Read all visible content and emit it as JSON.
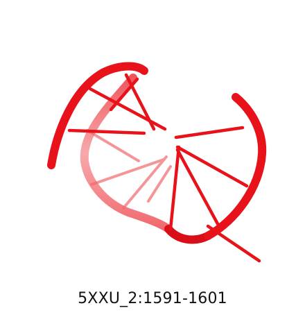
{
  "figure": {
    "caption": "5XXU_2:1591-1601",
    "render_color": "#e8121a"
  }
}
